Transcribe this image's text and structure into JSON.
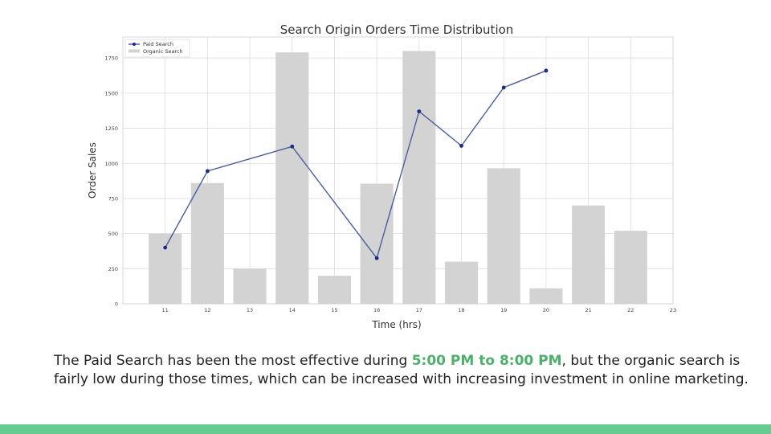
{
  "chart_data": {
    "type": "bar+line",
    "title": "Search Origin Orders Time Distribution",
    "xlabel": "Time (hrs)",
    "ylabel": "Order Sales",
    "x_ticks": [
      "11",
      "12",
      "13",
      "14",
      "15",
      "16",
      "17",
      "18",
      "19",
      "20",
      "21",
      "22",
      "23"
    ],
    "y_ticks": [
      "0",
      "250",
      "500",
      "750",
      "1000",
      "1250",
      "1500",
      "1750"
    ],
    "ylim": [
      0,
      1900
    ],
    "grid": true,
    "legend_placement": "top-left",
    "series": [
      {
        "name": "Organic Search",
        "kind": "bar",
        "color": "#d3d3d3",
        "x": [
          11,
          12,
          13,
          14,
          15,
          16,
          17,
          18,
          19,
          20,
          21,
          22
        ],
        "values": [
          500,
          860,
          250,
          1790,
          200,
          855,
          1800,
          300,
          965,
          110,
          700,
          520
        ]
      },
      {
        "name": "Paid Search",
        "kind": "line",
        "color": "#2b3f8f",
        "x": [
          11,
          12,
          14,
          16,
          17,
          18,
          19,
          20
        ],
        "values": [
          400,
          945,
          1120,
          325,
          1370,
          1125,
          1540,
          1660
        ]
      }
    ]
  },
  "caption": {
    "before": "The Paid Search has been the most effective  during ",
    "highlight": "5:00 PM to 8:00 PM",
    "after": ", but the organic search is fairly low during those times, which can be increased with increasing investment in online marketing."
  },
  "colors": {
    "accent": "#4caf6a",
    "footer": "#66cc8e"
  }
}
